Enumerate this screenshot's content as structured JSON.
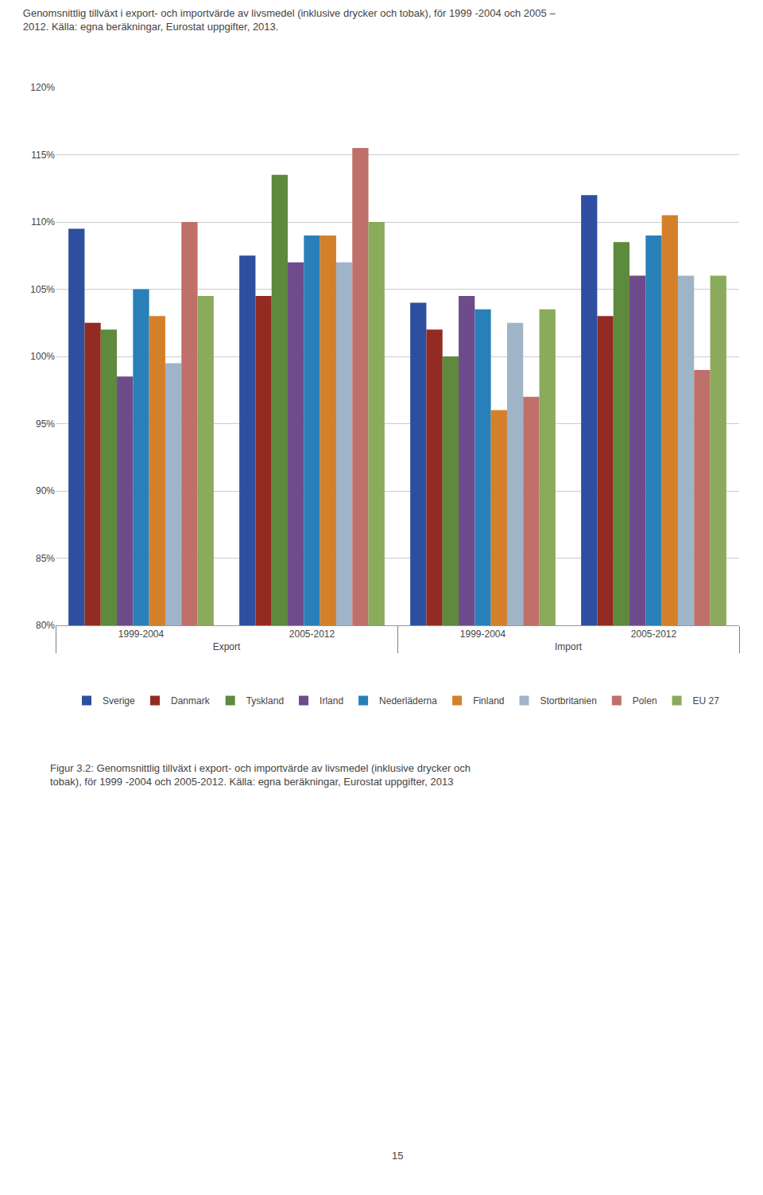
{
  "chart_data": {
    "type": "bar",
    "title": "Genomsnittlig tillväxt i export- och importvärde av livsmedel (inklusive drycker och tobak), för 1999 -2004 och 2005 –\n2012. Källa: egna beräkningar, Eurostat uppgifter, 2013.",
    "categories": [
      "1999-2004",
      "2005-2012",
      "1999-2004",
      "2005-2012"
    ],
    "category_groups": [
      "Export",
      "Export",
      "Import",
      "Import"
    ],
    "series": [
      {
        "name": "Sverige",
        "color": "#2e4fa0",
        "values": [
          109.5,
          107.5,
          104.0,
          112.0
        ]
      },
      {
        "name": "Danmark",
        "color": "#922b21",
        "values": [
          102.5,
          104.5,
          102.0,
          103.0
        ]
      },
      {
        "name": "Tyskland",
        "color": "#5d8a3c",
        "values": [
          102.0,
          113.5,
          100.0,
          108.5
        ]
      },
      {
        "name": "Irland",
        "color": "#6e4b8a",
        "values": [
          98.5,
          107.0,
          104.5,
          106.0
        ]
      },
      {
        "name": "Nederläderna",
        "color": "#2980b9",
        "values": [
          105.0,
          109.0,
          103.5,
          109.0
        ]
      },
      {
        "name": "Finland",
        "color": "#d4802a",
        "values": [
          103.0,
          109.0,
          96.0,
          110.5
        ]
      },
      {
        "name": "Stortbritanien",
        "color": "#a0b4c8",
        "values": [
          99.5,
          107.0,
          102.5,
          106.0
        ]
      },
      {
        "name": "Polen",
        "color": "#c0706a",
        "values": [
          110.0,
          115.5,
          97.0,
          99.0
        ]
      },
      {
        "name": "EU 27",
        "color": "#8aaa5c",
        "values": [
          104.5,
          110.0,
          103.5,
          106.0
        ]
      }
    ],
    "ylim": [
      80,
      120
    ],
    "yticks": [
      {
        "value": 80,
        "label": "80%"
      },
      {
        "value": 85,
        "label": "85%"
      },
      {
        "value": 90,
        "label": "90%"
      },
      {
        "value": 95,
        "label": "95%"
      },
      {
        "value": 100,
        "label": "100%"
      },
      {
        "value": 105,
        "label": "105%"
      },
      {
        "value": 110,
        "label": "110%"
      },
      {
        "value": 115,
        "label": "115%"
      },
      {
        "value": 120,
        "label": "120%"
      }
    ],
    "grid": true,
    "legend": "bottom",
    "annotations": [
      {
        "text": "Figur 3.2: Genomsnittlig tillväxt i export- och importvärde av livsmedel (inklusive drycker och\ntobak), för 1999 -2004 och 2005-2012. Källa: egna beräkningar, Eurostat uppgifter, 2013"
      },
      {
        "text": "15"
      }
    ]
  }
}
